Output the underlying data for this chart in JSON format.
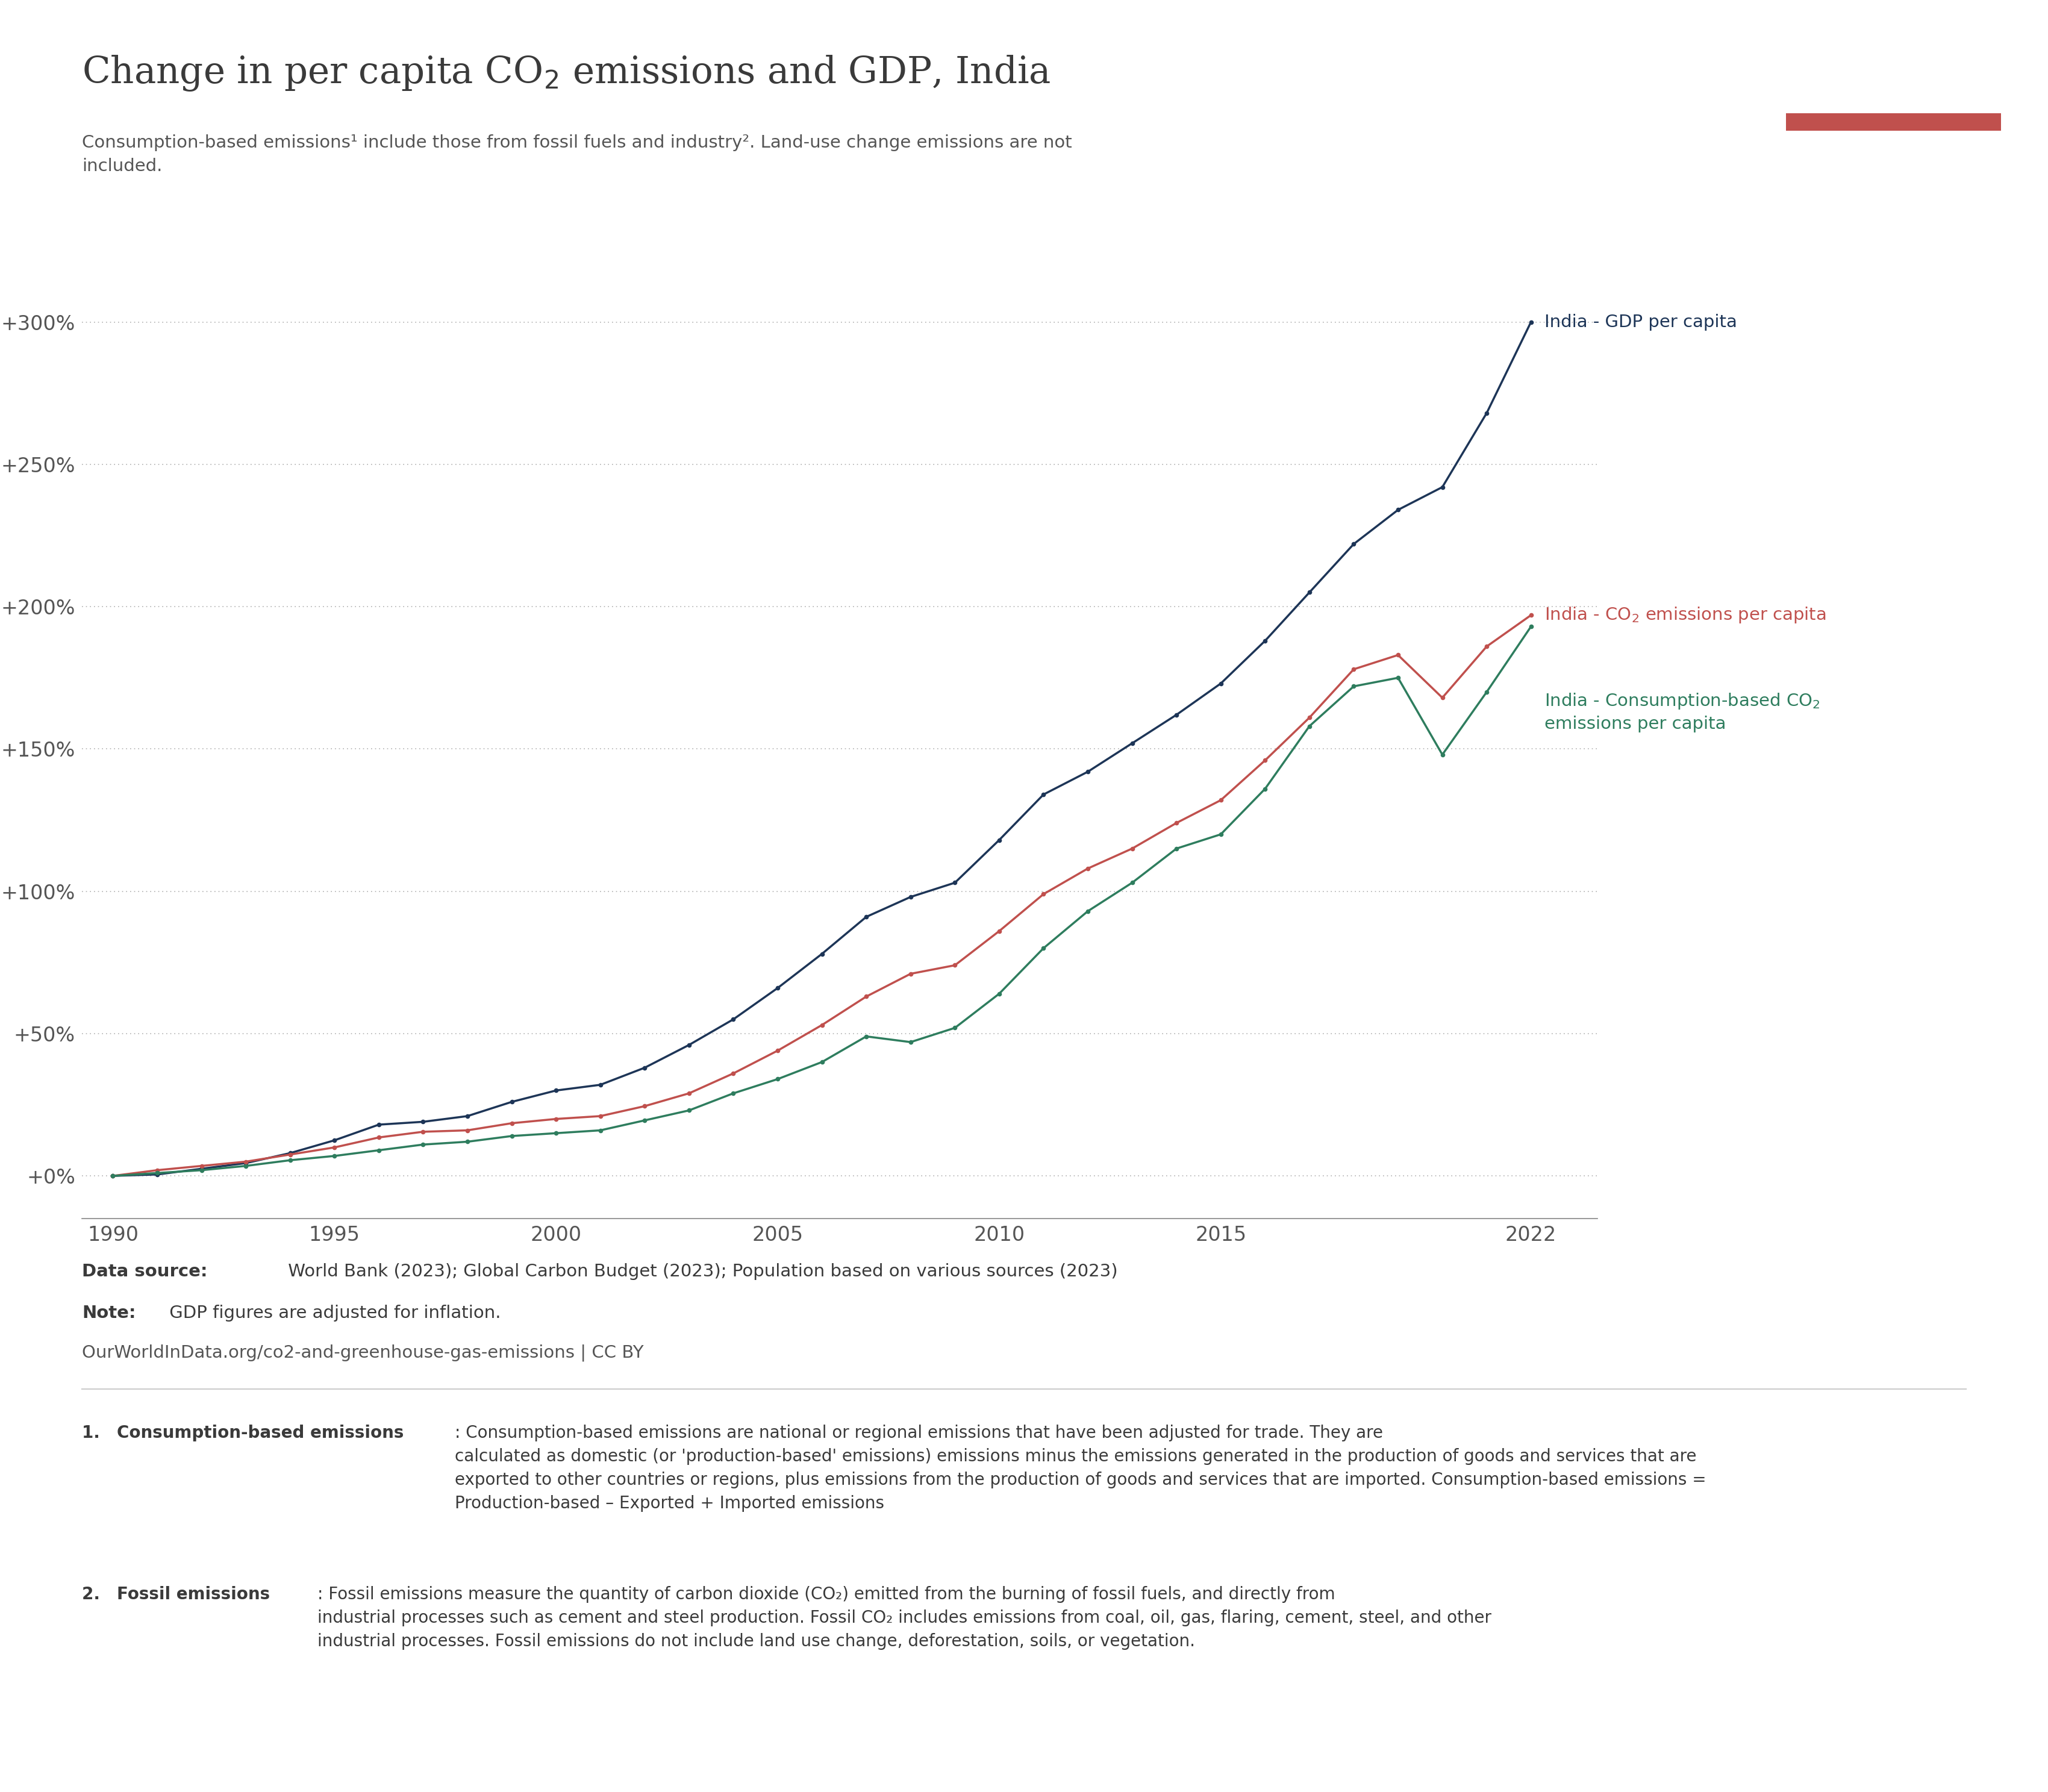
{
  "years": [
    1990,
    1991,
    1992,
    1993,
    1994,
    1995,
    1996,
    1997,
    1998,
    1999,
    2000,
    2001,
    2002,
    2003,
    2004,
    2005,
    2006,
    2007,
    2008,
    2009,
    2010,
    2011,
    2012,
    2013,
    2014,
    2015,
    2016,
    2017,
    2018,
    2019,
    2020,
    2021,
    2022
  ],
  "gdp": [
    0.0,
    0.5,
    2.5,
    4.5,
    8.0,
    12.5,
    18.0,
    19.0,
    21.0,
    26.0,
    30.0,
    32.0,
    38.0,
    46.0,
    55.0,
    66.0,
    78.0,
    91.0,
    98.0,
    103.0,
    118.0,
    134.0,
    142.0,
    152.0,
    162.0,
    173.0,
    188.0,
    205.0,
    222.0,
    234.0,
    242.0,
    268.0,
    300.0
  ],
  "co2": [
    0.0,
    2.0,
    3.5,
    5.0,
    7.5,
    10.0,
    13.5,
    15.5,
    16.0,
    18.5,
    20.0,
    21.0,
    24.5,
    29.0,
    36.0,
    44.0,
    53.0,
    63.0,
    71.0,
    74.0,
    86.0,
    99.0,
    108.0,
    115.0,
    124.0,
    132.0,
    146.0,
    161.0,
    178.0,
    183.0,
    168.0,
    186.0,
    197.0
  ],
  "cons": [
    0.0,
    1.0,
    2.0,
    3.5,
    5.5,
    7.0,
    9.0,
    11.0,
    12.0,
    14.0,
    15.0,
    16.0,
    19.5,
    23.0,
    29.0,
    34.0,
    40.0,
    49.0,
    47.0,
    52.0,
    64.0,
    80.0,
    93.0,
    103.0,
    115.0,
    120.0,
    136.0,
    158.0,
    172.0,
    175.0,
    148.0,
    170.0,
    193.0
  ],
  "gdp_color": "#1d3557",
  "co2_color": "#c0504d",
  "cons_color": "#2e7d5e",
  "background_color": "#ffffff",
  "grid_color": "#b0b0b0",
  "yticks": [
    0,
    50,
    100,
    150,
    200,
    250,
    300
  ],
  "ytick_labels": [
    "+0%",
    "+50%",
    "+100%",
    "+150%",
    "+200%",
    "+250%",
    "+300%"
  ],
  "xticks": [
    1990,
    1995,
    2000,
    2005,
    2010,
    2015,
    2022
  ],
  "ylim": [
    -15,
    325
  ],
  "xlim": [
    1989.3,
    2023.5
  ],
  "logo_dark": "#1d3557",
  "logo_red": "#c0504d",
  "text_color": "#3a3a3a",
  "tick_color": "#555555"
}
